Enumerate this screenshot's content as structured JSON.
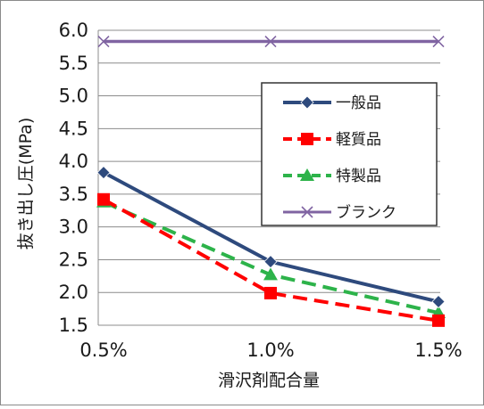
{
  "chart_data": {
    "type": "line",
    "title": "",
    "xlabel": "滑沢剤配合量",
    "ylabel": "抜き出し圧(MPa)",
    "categories": [
      "0.5%",
      "1.0%",
      "1.5%"
    ],
    "ylim": [
      1.5,
      6.0
    ],
    "yticks": [
      "1.5",
      "2.0",
      "2.5",
      "3.0",
      "3.5",
      "4.0",
      "4.5",
      "5.0",
      "5.5",
      "6.0"
    ],
    "grid": true,
    "legend_position": "upper-right",
    "series": [
      {
        "name": "一般品",
        "values": [
          3.83,
          2.47,
          1.86
        ],
        "color": "#2e4a7d",
        "marker": "diamond",
        "dash": "solid"
      },
      {
        "name": "軽質品",
        "values": [
          3.42,
          1.99,
          1.57
        ],
        "color": "#ff0000",
        "marker": "square",
        "dash": "dashed"
      },
      {
        "name": "特製品",
        "values": [
          3.38,
          2.27,
          1.69
        ],
        "color": "#2db34a",
        "marker": "triangle",
        "dash": "dashed"
      },
      {
        "name": "ブランク",
        "values": [
          5.83,
          5.83,
          5.83
        ],
        "color": "#8064a2",
        "marker": "x",
        "dash": "solid"
      }
    ]
  }
}
